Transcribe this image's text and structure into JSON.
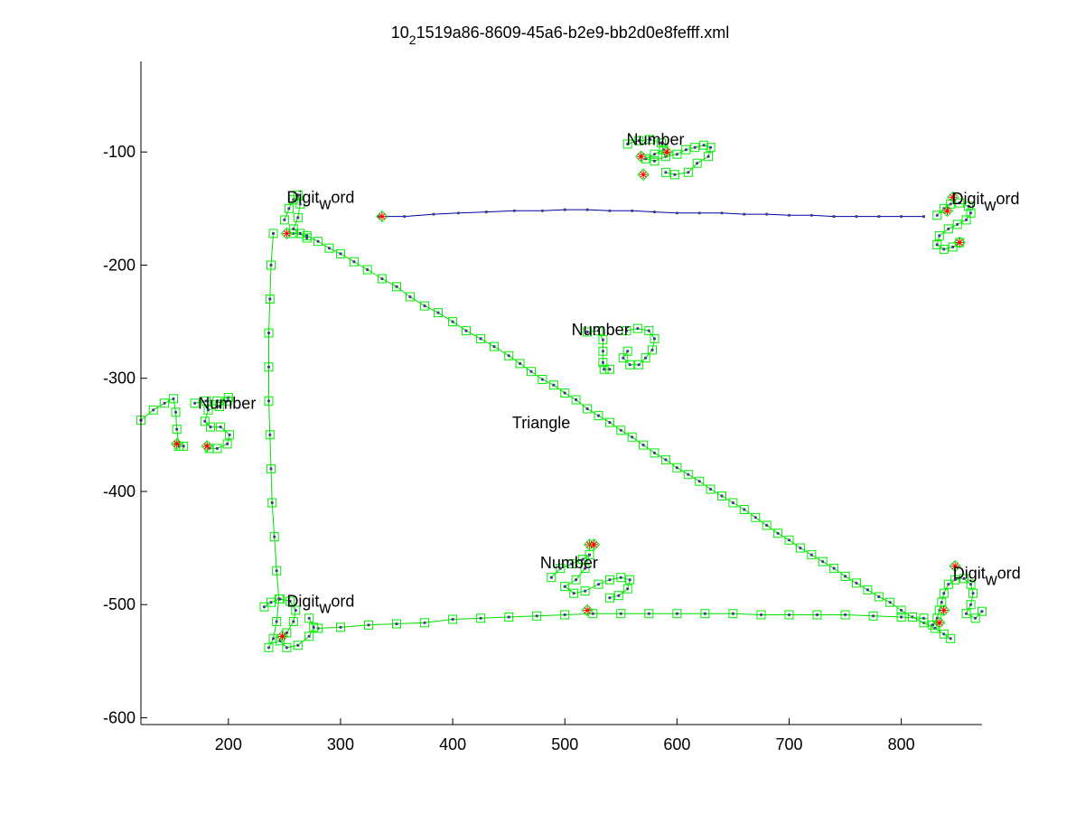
{
  "chart_data": {
    "type": "scatter",
    "title": "10_21519a86-8609-45a6-b2e9-bb2d0e8fefff.xml",
    "title_main": "10",
    "title_sub": "2",
    "title_rest": "1519a86-8609-45a6-b2e9-bb2d0e8fefff.xml",
    "xlabel": "",
    "ylabel": "",
    "xlim": [
      122,
      872
    ],
    "ylim": [
      -606,
      -20
    ],
    "xticks": [
      200,
      300,
      400,
      500,
      600,
      700,
      800
    ],
    "yticks": [
      -100,
      -200,
      -300,
      -400,
      -500,
      -600
    ],
    "grid": false,
    "colors": {
      "stroke_line": "#00dd00",
      "marker_box": "#00ee00",
      "marker_dot": "#404080",
      "connector": "#0000aa",
      "cusp": "#ff0000",
      "axis": "#000000"
    },
    "annotations": [
      {
        "kind": "plain",
        "text": "Number",
        "x": 555,
        "y": -94
      },
      {
        "kind": "plain",
        "text": "Number",
        "x": 506,
        "y": -262
      },
      {
        "kind": "plain",
        "text": "Number",
        "x": 173,
        "y": -327
      },
      {
        "kind": "plain",
        "text": "Number",
        "x": 478,
        "y": -468
      },
      {
        "kind": "plain",
        "text": "Triangle",
        "x": 453,
        "y": -344
      },
      {
        "kind": "digitword",
        "pre": "Digit",
        "sub": "w",
        "post": "ord",
        "x": 252,
        "y": -145
      },
      {
        "kind": "digitword",
        "pre": "Digit",
        "sub": "w",
        "post": "ord",
        "x": 845,
        "y": -146
      },
      {
        "kind": "digitword",
        "pre": "Digit",
        "sub": "w",
        "post": "ord",
        "x": 252,
        "y": -502
      },
      {
        "kind": "digitword",
        "pre": "Digit",
        "sub": "w",
        "post": "ord",
        "x": 846,
        "y": -477
      }
    ],
    "series": [
      {
        "type": "stroke",
        "points": [
          [
            334,
            -157
          ],
          [
            357,
            -157
          ],
          [
            383,
            -155
          ],
          [
            405,
            -154
          ],
          [
            430,
            -153
          ],
          [
            455,
            -152
          ],
          [
            480,
            -152
          ],
          [
            500,
            -151
          ],
          [
            520,
            -151
          ],
          [
            540,
            -152
          ],
          [
            560,
            -152
          ],
          [
            580,
            -153
          ],
          [
            600,
            -154
          ],
          [
            620,
            -154
          ],
          [
            640,
            -154
          ],
          [
            660,
            -155
          ],
          [
            680,
            -155
          ],
          [
            700,
            -156
          ],
          [
            720,
            -156
          ],
          [
            740,
            -157
          ],
          [
            760,
            -157
          ],
          [
            780,
            -157
          ],
          [
            800,
            -157
          ],
          [
            820,
            -157
          ]
        ]
      },
      {
        "type": "stroke",
        "points": [
          [
            122,
            -337
          ],
          [
            133,
            -328
          ],
          [
            143,
            -322
          ],
          [
            151,
            -318
          ],
          [
            153,
            -330
          ],
          [
            154,
            -345
          ],
          [
            156,
            -360
          ],
          [
            160,
            -360
          ]
        ]
      },
      {
        "type": "stroke",
        "points": [
          [
            170,
            -322
          ],
          [
            180,
            -320
          ],
          [
            190,
            -320
          ],
          [
            200,
            -317
          ],
          [
            199,
            -320
          ],
          [
            192,
            -325
          ],
          [
            182,
            -328
          ],
          [
            179,
            -338
          ],
          [
            184,
            -343
          ],
          [
            193,
            -343
          ],
          [
            201,
            -350
          ],
          [
            199,
            -358
          ],
          [
            190,
            -362
          ],
          [
            183,
            -362
          ]
        ]
      },
      {
        "type": "stroke",
        "points": [
          [
            258,
            -172
          ],
          [
            270,
            -174
          ],
          [
            280,
            -179
          ],
          [
            290,
            -185
          ],
          [
            300,
            -190
          ],
          [
            312,
            -197
          ],
          [
            324,
            -204
          ],
          [
            337,
            -212
          ],
          [
            350,
            -219
          ],
          [
            362,
            -228
          ],
          [
            375,
            -236
          ],
          [
            387,
            -242
          ],
          [
            400,
            -250
          ],
          [
            412,
            -258
          ],
          [
            425,
            -265
          ],
          [
            437,
            -272
          ],
          [
            450,
            -280
          ],
          [
            460,
            -287
          ],
          [
            470,
            -294
          ],
          [
            480,
            -301
          ],
          [
            490,
            -306
          ],
          [
            500,
            -313
          ],
          [
            510,
            -319
          ],
          [
            520,
            -327
          ],
          [
            530,
            -333
          ],
          [
            540,
            -339
          ],
          [
            550,
            -346
          ],
          [
            560,
            -352
          ],
          [
            570,
            -359
          ],
          [
            580,
            -366
          ],
          [
            590,
            -372
          ],
          [
            600,
            -379
          ],
          [
            610,
            -385
          ],
          [
            620,
            -391
          ],
          [
            630,
            -398
          ],
          [
            640,
            -404
          ],
          [
            650,
            -410
          ],
          [
            660,
            -416
          ],
          [
            670,
            -423
          ],
          [
            680,
            -430
          ],
          [
            690,
            -437
          ],
          [
            700,
            -443
          ],
          [
            710,
            -450
          ],
          [
            720,
            -456
          ],
          [
            730,
            -462
          ],
          [
            740,
            -468
          ],
          [
            750,
            -475
          ],
          [
            760,
            -481
          ],
          [
            770,
            -487
          ],
          [
            780,
            -493
          ],
          [
            790,
            -498
          ],
          [
            800,
            -505
          ],
          [
            810,
            -511
          ],
          [
            820,
            -516
          ],
          [
            830,
            -521
          ],
          [
            838,
            -526
          ],
          [
            844,
            -530
          ]
        ]
      },
      {
        "type": "stroke",
        "points": [
          [
            280,
            -521
          ],
          [
            300,
            -520
          ],
          [
            325,
            -518
          ],
          [
            350,
            -517
          ],
          [
            375,
            -516
          ],
          [
            400,
            -513
          ],
          [
            425,
            -512
          ],
          [
            450,
            -511
          ],
          [
            475,
            -510
          ],
          [
            500,
            -509
          ],
          [
            525,
            -508
          ],
          [
            550,
            -508
          ],
          [
            575,
            -508
          ],
          [
            600,
            -508
          ],
          [
            625,
            -508
          ],
          [
            650,
            -508
          ],
          [
            675,
            -509
          ],
          [
            700,
            -509
          ],
          [
            725,
            -509
          ],
          [
            750,
            -509
          ],
          [
            775,
            -510
          ],
          [
            800,
            -511
          ],
          [
            820,
            -512
          ]
        ]
      },
      {
        "type": "stroke",
        "points": [
          [
            240,
            -172
          ],
          [
            238,
            -200
          ],
          [
            237,
            -230
          ],
          [
            236,
            -260
          ],
          [
            236,
            -290
          ],
          [
            236,
            -320
          ],
          [
            237,
            -350
          ],
          [
            238,
            -380
          ],
          [
            239,
            -410
          ],
          [
            241,
            -440
          ],
          [
            243,
            -470
          ],
          [
            245,
            -495
          ],
          [
            243,
            -515
          ],
          [
            240,
            -530
          ],
          [
            236,
            -538
          ]
        ]
      },
      {
        "type": "stroke",
        "points": [
          [
            232,
            -502
          ],
          [
            238,
            -498
          ],
          [
            246,
            -495
          ],
          [
            255,
            -497
          ],
          [
            260,
            -505
          ],
          [
            258,
            -515
          ],
          [
            252,
            -525
          ],
          [
            246,
            -532
          ],
          [
            252,
            -538
          ],
          [
            262,
            -536
          ],
          [
            272,
            -528
          ],
          [
            276,
            -520
          ],
          [
            272,
            -512
          ]
        ]
      },
      {
        "type": "stroke",
        "points": [
          [
            250,
            -160
          ],
          [
            254,
            -150
          ],
          [
            258,
            -142
          ],
          [
            262,
            -138
          ],
          [
            264,
            -146
          ],
          [
            262,
            -158
          ],
          [
            258,
            -168
          ],
          [
            264,
            -172
          ],
          [
            270,
            -176
          ]
        ]
      },
      {
        "type": "stroke",
        "points": [
          [
            556,
            -93
          ],
          [
            566,
            -90
          ],
          [
            576,
            -89
          ],
          [
            586,
            -92
          ],
          [
            588,
            -98
          ],
          [
            580,
            -102
          ],
          [
            572,
            -106
          ],
          [
            580,
            -108
          ],
          [
            590,
            -104
          ],
          [
            600,
            -102
          ],
          [
            608,
            -98
          ],
          [
            616,
            -96
          ],
          [
            624,
            -94
          ],
          [
            630,
            -96
          ],
          [
            628,
            -104
          ],
          [
            618,
            -110
          ],
          [
            610,
            -118
          ],
          [
            598,
            -120
          ],
          [
            590,
            -118
          ]
        ]
      },
      {
        "type": "stroke",
        "points": [
          [
            520,
            -259
          ],
          [
            530,
            -258
          ],
          [
            534,
            -266
          ],
          [
            534,
            -276
          ],
          [
            534,
            -286
          ],
          [
            535,
            -292
          ],
          [
            540,
            -292
          ]
        ]
      },
      {
        "type": "stroke",
        "points": [
          [
            555,
            -258
          ],
          [
            565,
            -256
          ],
          [
            575,
            -258
          ],
          [
            580,
            -265
          ],
          [
            578,
            -275
          ],
          [
            572,
            -282
          ],
          [
            566,
            -288
          ],
          [
            558,
            -288
          ],
          [
            552,
            -282
          ],
          [
            556,
            -276
          ]
        ]
      },
      {
        "type": "stroke",
        "points": [
          [
            488,
            -476
          ],
          [
            496,
            -468
          ],
          [
            506,
            -464
          ],
          [
            516,
            -460
          ],
          [
            522,
            -456
          ],
          [
            518,
            -468
          ],
          [
            510,
            -478
          ],
          [
            500,
            -484
          ],
          [
            508,
            -490
          ],
          [
            518,
            -488
          ],
          [
            530,
            -482
          ],
          [
            540,
            -478
          ],
          [
            550,
            -476
          ],
          [
            558,
            -478
          ],
          [
            556,
            -486
          ],
          [
            548,
            -492
          ],
          [
            540,
            -494
          ]
        ]
      },
      {
        "type": "stroke",
        "points": [
          [
            832,
            -156
          ],
          [
            838,
            -150
          ],
          [
            844,
            -146
          ],
          [
            852,
            -145
          ],
          [
            860,
            -148
          ],
          [
            862,
            -154
          ],
          [
            858,
            -160
          ],
          [
            850,
            -164
          ],
          [
            842,
            -168
          ],
          [
            834,
            -174
          ],
          [
            832,
            -182
          ],
          [
            838,
            -186
          ],
          [
            846,
            -184
          ],
          [
            852,
            -180
          ]
        ]
      },
      {
        "type": "stroke",
        "points": [
          [
            828,
            -518
          ],
          [
            832,
            -512
          ],
          [
            834,
            -505
          ],
          [
            836,
            -498
          ],
          [
            838,
            -490
          ],
          [
            842,
            -482
          ],
          [
            848,
            -478
          ],
          [
            856,
            -477
          ],
          [
            862,
            -482
          ],
          [
            864,
            -490
          ],
          [
            862,
            -500
          ],
          [
            858,
            -508
          ],
          [
            866,
            -512
          ],
          [
            872,
            -506
          ]
        ]
      }
    ],
    "cusps": [
      [
        337,
        -157
      ],
      [
        570,
        -120
      ],
      [
        591,
        -100
      ],
      [
        568,
        -104
      ],
      [
        181,
        -360
      ],
      [
        252,
        -172
      ],
      [
        248,
        -528
      ],
      [
        522,
        -447
      ],
      [
        520,
        -505
      ],
      [
        841,
        -152
      ],
      [
        846,
        -140
      ],
      [
        852,
        -180
      ],
      [
        838,
        -505
      ],
      [
        848,
        -466
      ],
      [
        834,
        -516
      ],
      [
        154,
        -358
      ],
      [
        526,
        -447
      ]
    ]
  }
}
